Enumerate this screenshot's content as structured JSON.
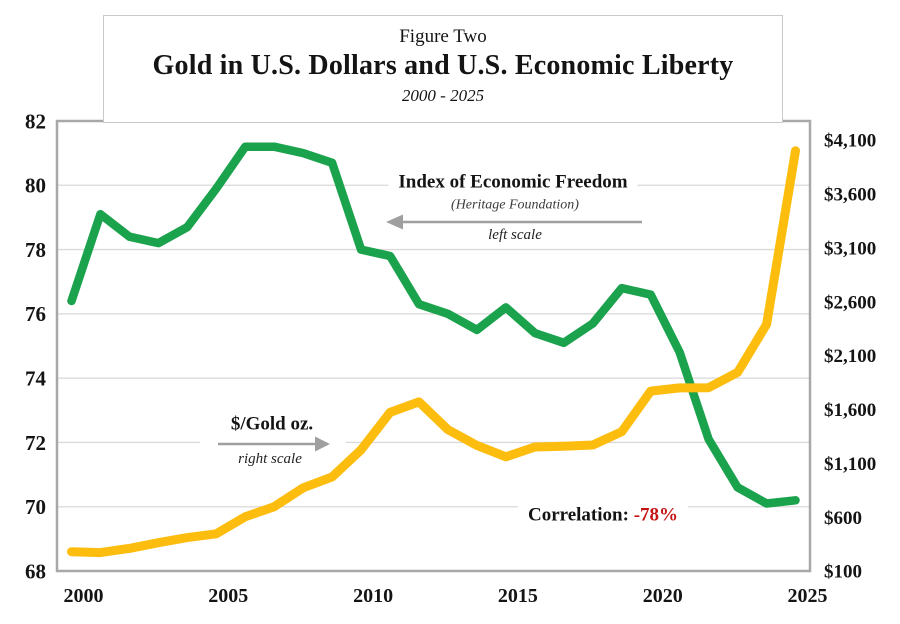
{
  "title_box": {
    "kicker": "Figure Two",
    "title": "Gold in U.S. Dollars and U.S. Economic Liberty",
    "subtitle": "2000 - 2025"
  },
  "annotations": {
    "index_label": "Index of Economic Freedom",
    "index_sub": "(Heritage Foundation)",
    "index_scale": "left scale",
    "gold_label": "$/Gold oz.",
    "gold_scale": "right scale",
    "correlation_label": "Correlation:",
    "correlation_value": "-78%"
  },
  "colors": {
    "green": "#1ba24c",
    "gold": "#fcbd0f",
    "grid": "#d9d9d9",
    "border": "#a8a8a8",
    "arrow": "#9f9f9f",
    "red": "#c41414",
    "text": "#141414"
  },
  "chart_data": {
    "type": "line",
    "title": "Gold in U.S. Dollars and U.S. Economic Liberty",
    "subtitle": "2000 - 2025",
    "grid": "horizontal",
    "legend_position": "none",
    "x": [
      2000,
      2001,
      2002,
      2003,
      2004,
      2005,
      2006,
      2007,
      2008,
      2009,
      2010,
      2011,
      2012,
      2013,
      2014,
      2015,
      2016,
      2017,
      2018,
      2019,
      2020,
      2021,
      2022,
      2023,
      2024,
      2025
    ],
    "series": [
      {
        "name": "Index of Economic Freedom (Heritage Foundation)",
        "axis": "left",
        "color_key": "green",
        "values": [
          76.4,
          79.1,
          78.4,
          78.2,
          78.7,
          79.9,
          81.2,
          81.2,
          81.0,
          80.7,
          78.0,
          77.8,
          76.3,
          76.0,
          75.5,
          76.2,
          75.4,
          75.1,
          75.7,
          76.8,
          76.6,
          74.8,
          72.1,
          70.6,
          70.1,
          70.2
        ]
      },
      {
        "name": "$/Gold oz.",
        "axis": "right",
        "color_key": "gold",
        "values": [
          279,
          271,
          310,
          363,
          410,
          445,
          604,
          697,
          872,
          973,
          1225,
          1572,
          1669,
          1411,
          1266,
          1160,
          1251,
          1258,
          1269,
          1393,
          1770,
          1799,
          1801,
          1943,
          2390,
          4000
        ]
      }
    ],
    "left_axis": {
      "min": 68,
      "max": 82,
      "step": 2,
      "ticks": [
        "68",
        "70",
        "72",
        "74",
        "76",
        "78",
        "80",
        "82"
      ]
    },
    "right_axis": {
      "min": 100,
      "max": 4100,
      "step": 500,
      "ticks": [
        "$100",
        "$600",
        "$1,100",
        "$1,600",
        "$2,100",
        "$2,600",
        "$3,100",
        "$3,600",
        "$4,100"
      ]
    },
    "x_ticks": {
      "years": [
        2000,
        2005,
        2010,
        2015,
        2020,
        2025
      ],
      "labels": [
        "2000",
        "2005",
        "2010",
        "2015",
        "2020",
        "2025"
      ]
    },
    "correlation": "-78%"
  }
}
